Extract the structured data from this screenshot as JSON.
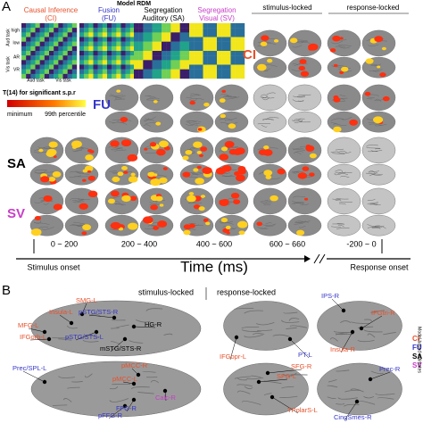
{
  "panel_a": {
    "label": "A",
    "model_rdm_title": "Model RDM",
    "models": [
      {
        "name": "Causal Inference",
        "abbr": "(CI)"
      },
      {
        "name": "Fusion",
        "abbr": "(FU)"
      },
      {
        "name": "Segregation",
        "abbr": "Auditory (SA)"
      },
      {
        "name": "Segregation",
        "abbr": "Visual (SV)"
      }
    ],
    "matrix_labels": {
      "aud_task": "Aud task",
      "vis_task": "Vis task",
      "ar": "AR",
      "vr": "VR",
      "high": "high",
      "low": "low"
    },
    "colorbar": {
      "title": "T(14) for significant s.p.r",
      "min_label": "minimum",
      "max_label": "99th percentile"
    },
    "column_groups": [
      "stimulus-locked",
      "response-locked"
    ],
    "rows": [
      "CI",
      "FU",
      "SA",
      "SV"
    ],
    "time_windows": [
      "0 ~ 200",
      "200 ~ 400",
      "400 ~ 600",
      "600 ~ 660",
      "-200 ~ 0"
    ],
    "stimulus_onset": "Stimulus onset",
    "time_axis": "Time (ms)",
    "response_onset": "Response onset"
  },
  "panel_b": {
    "label": "B",
    "column_groups": [
      "stimulus-locked",
      "response-locked"
    ],
    "regions": [
      "Insula-L",
      "SMG-L",
      "MFG-L",
      "IFGorb-L",
      "pSTG/STS-R",
      "pSTG/STS-L",
      "HG-R",
      "mSTG/STS-R",
      "pMCC-R",
      "Prec/SPL-L",
      "pMCC-L",
      "pFFG-R",
      "FFG-R",
      "Calc-R",
      "IFGopr-L",
      "PT-L",
      "IPS-R",
      "IFGtri-R",
      "Insula-R",
      "SFG-R",
      "Prec-R",
      "SFG-L",
      "TPolarS-L",
      "CingSmes-R"
    ],
    "legend": [
      "CI",
      "FU",
      "SA",
      "SV"
    ],
    "legend_title": "Model-based estimates"
  }
}
